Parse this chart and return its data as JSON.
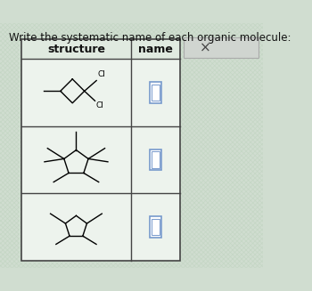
{
  "title": "Write the systematic name of each organic molecule:",
  "col1_header": "structure",
  "col2_header": "name",
  "bg_color": "#d0ddd0",
  "table_bg": "#eef3ee",
  "border_color": "#444444",
  "text_color": "#111111",
  "title_fontsize": 8.5,
  "header_fontsize": 9,
  "input_box_color": "#7799cc",
  "crosshatch_color": "#c0d4c0",
  "panel_color": "#c8ccc8",
  "panel_border": "#999999"
}
